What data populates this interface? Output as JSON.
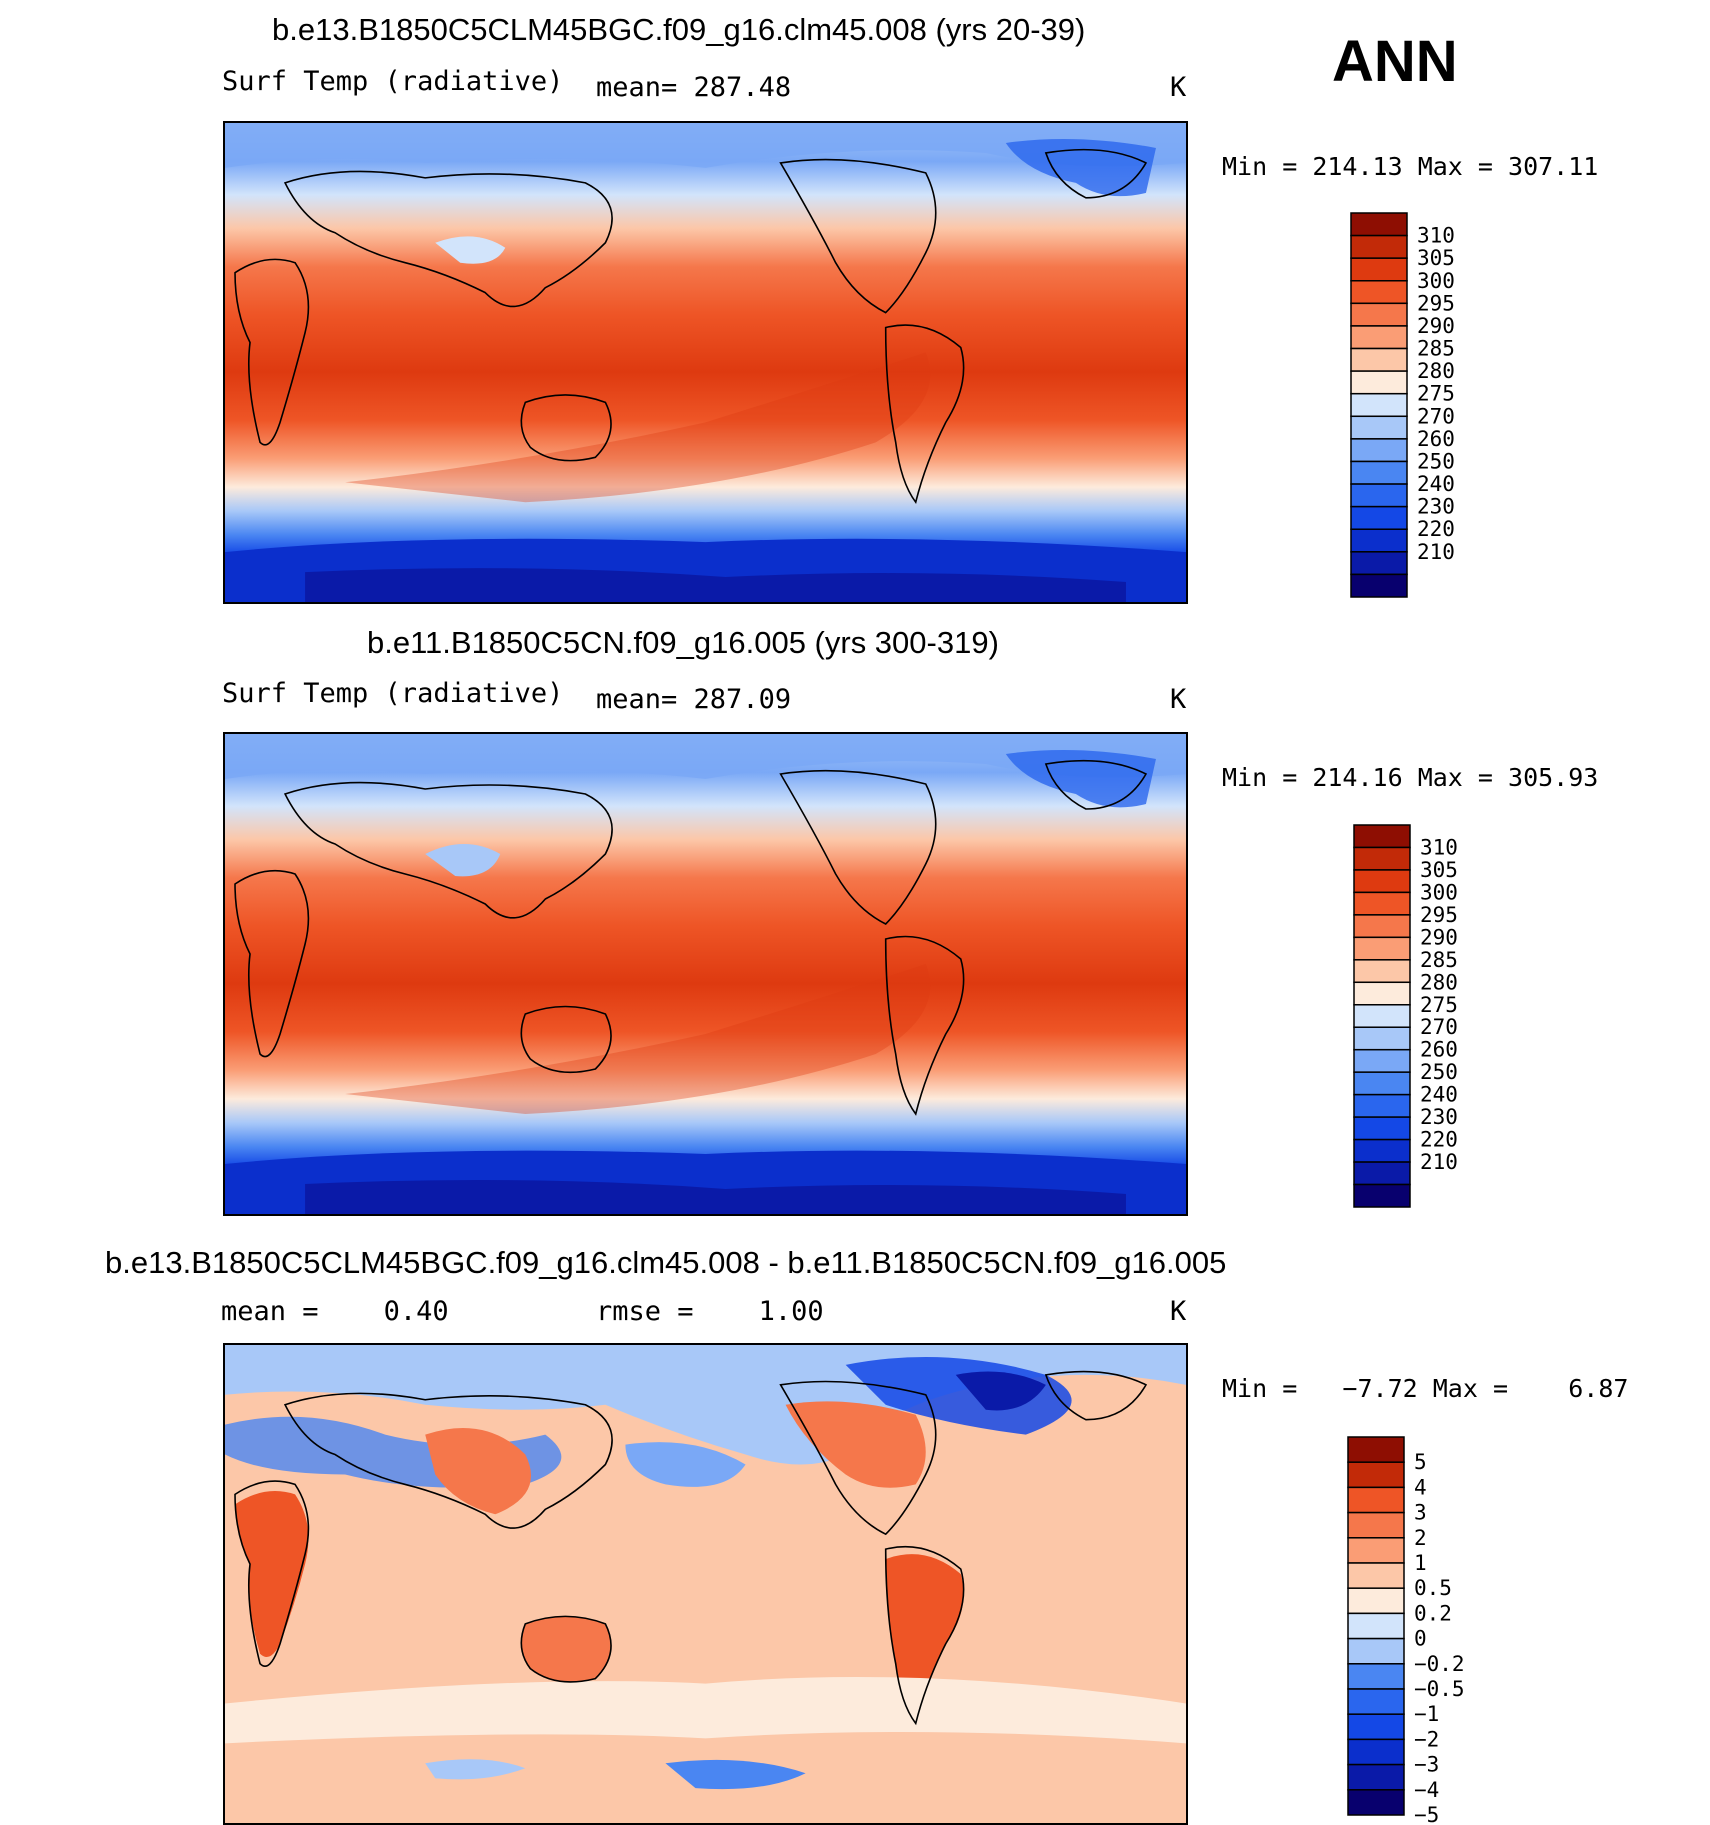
{
  "season": "ANN",
  "units": "K",
  "palettes": {
    "temp": [
      "#08006e",
      "#0a1aa8",
      "#0b2fcc",
      "#1448e6",
      "#2a66ee",
      "#4a86f2",
      "#7aa8f6",
      "#a8c8f8",
      "#d2e4fb",
      "#fdebdc",
      "#fcc7a8",
      "#fa9d75",
      "#f5774b",
      "#ee5526",
      "#de3a10",
      "#c22a08",
      "#8e0e02"
    ],
    "diff": [
      "#08006e",
      "#0a1aa8",
      "#0b2fcc",
      "#1448e6",
      "#2a66ee",
      "#4a86f2",
      "#a8c8f8",
      "#d2e4fb",
      "#fdebdc",
      "#fcc7a8",
      "#fa9d75",
      "#f5774b",
      "#ee5526",
      "#c22a08",
      "#8e0e02"
    ]
  },
  "chart_data": [
    {
      "type": "heatmap",
      "panel": "case",
      "title": "b.e13.B1850C5CLM45BGC.f09_g16.clm45.008 (yrs 20-39)",
      "variable": "Surf Temp (radiative)",
      "mean_label": "mean=",
      "mean": "287.48",
      "units": "K",
      "min_label": "Min =",
      "min": "214.13",
      "max_label": "Max =",
      "max": "307.11",
      "levels": [
        "310",
        "305",
        "300",
        "295",
        "290",
        "285",
        "280",
        "275",
        "270",
        "260",
        "250",
        "240",
        "230",
        "220",
        "210"
      ]
    },
    {
      "type": "heatmap",
      "panel": "control",
      "title": "b.e11.B1850C5CN.f09_g16.005 (yrs 300-319)",
      "variable": "Surf Temp (radiative)",
      "mean_label": "mean=",
      "mean": "287.09",
      "units": "K",
      "min_label": "Min =",
      "min": "214.16",
      "max_label": "Max =",
      "max": "305.93",
      "levels": [
        "310",
        "305",
        "300",
        "295",
        "290",
        "285",
        "280",
        "275",
        "270",
        "260",
        "250",
        "240",
        "230",
        "220",
        "210"
      ]
    },
    {
      "type": "heatmap",
      "panel": "difference",
      "title": "b.e13.B1850C5CLM45BGC.f09_g16.clm45.008 - b.e11.B1850C5CN.f09_g16.005",
      "mean_label": "mean =",
      "mean": "0.40",
      "rmse_label": "rmse =",
      "rmse": "1.00",
      "units": "K",
      "min_label": "Min =",
      "min": "−7.72",
      "max_label": "Max =",
      "max": "6.87",
      "levels": [
        "5",
        "4",
        "3",
        "2",
        "1",
        "0.5",
        "0.2",
        "0",
        "−0.2",
        "−0.5",
        "−1",
        "−2",
        "−3",
        "−4",
        "−5"
      ]
    }
  ]
}
